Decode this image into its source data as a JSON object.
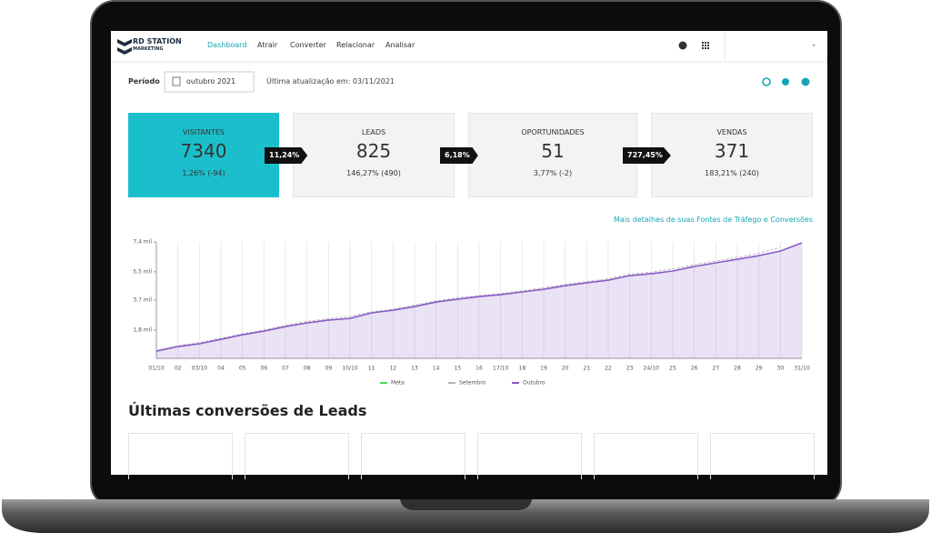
{
  "nav": {
    "logo": [
      "RD STATION",
      "MARKETING"
    ],
    "items": [
      "Dashboard",
      "Atrair",
      "Converter",
      "Relacionar",
      "Analisar"
    ]
  },
  "toolbar": {
    "period_label": "Período",
    "date": "outubro 2021",
    "updated": "Última atualização em: 03/11/2021"
  },
  "cards": [
    {
      "label": "VISITANTES",
      "value": 7340,
      "change": "1,26% (-94)"
    },
    {
      "label": "LEADS",
      "value": 825,
      "change": "146,27% (490)"
    },
    {
      "label": "OPORTUNIDADES",
      "value": 51,
      "change": "3,77% (-2)"
    },
    {
      "label": "VENDAS",
      "value": 371,
      "change": "183,21% (240)"
    }
  ],
  "rates": [
    "11,24%",
    "6,18%",
    "727,45%"
  ],
  "link": "Mais detalhes de suas Fontes de Tráfego e Conversões",
  "section_title": "Últimas conversões de Leads",
  "chart_data": {
    "type": "area",
    "categories": [
      "01/10",
      "02",
      "03/10",
      "04",
      "05",
      "06",
      "07",
      "08",
      "09",
      "10/10",
      "11",
      "12",
      "13",
      "14",
      "15",
      "16",
      "17/10",
      "18",
      "19",
      "20",
      "21",
      "22",
      "23",
      "24/10",
      "25",
      "26",
      "27",
      "28",
      "29",
      "30",
      "31/10"
    ],
    "series": [
      {
        "name": "Meta",
        "color": "#4cd964",
        "values": [
          null,
          null,
          null,
          null,
          null,
          null,
          null,
          null,
          null,
          null,
          null,
          null,
          null,
          null,
          null,
          null,
          null,
          null,
          null,
          null,
          null,
          null,
          null,
          null,
          null,
          null,
          null,
          null,
          null,
          null,
          null
        ]
      },
      {
        "name": "Setembro",
        "color": "#b5b5b5",
        "values": [
          500,
          800,
          1000,
          1280,
          1560,
          1800,
          2100,
          2350,
          2520,
          2680,
          2950,
          3120,
          3380,
          3650,
          3850,
          4000,
          4120,
          4300,
          4480,
          4700,
          4880,
          5060,
          5350,
          5480,
          5680,
          5960,
          6180,
          6420,
          6680,
          7050,
          null
        ]
      },
      {
        "name": "Outubro",
        "color": "#8a5cc7",
        "values": [
          460,
          750,
          925,
          1210,
          1500,
          1730,
          2020,
          2250,
          2430,
          2540,
          2890,
          3060,
          3290,
          3580,
          3760,
          3930,
          4050,
          4220,
          4390,
          4620,
          4800,
          4970,
          5260,
          5380,
          5550,
          5840,
          6070,
          6300,
          6530,
          6820,
          7340
        ]
      }
    ],
    "ylim": [
      0,
      7400
    ],
    "yticks": [
      {
        "value": 1800,
        "label": "1,8 mil"
      },
      {
        "value": 3700,
        "label": "3,7 mil"
      },
      {
        "value": 5500,
        "label": "5,5 mil"
      },
      {
        "value": 7400,
        "label": "7,4 mil"
      }
    ]
  }
}
